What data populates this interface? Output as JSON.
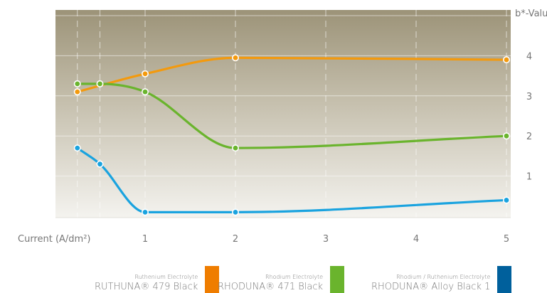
{
  "chart_data": {
    "type": "line",
    "xlabel": "Current (A/dm²)",
    "ylabel": "b*-Value",
    "x_ticks": [
      "1",
      "2",
      "3",
      "4",
      "5"
    ],
    "y_ticks": [
      "1",
      "2",
      "3",
      "4"
    ],
    "xlim": [
      0.0,
      5.0
    ],
    "ylim": [
      0,
      5
    ],
    "grid": true,
    "legend_position": "bottom",
    "series": [
      {
        "name": "RUTHUNA® 479 Black",
        "category": "Ruthenium Electrolyte",
        "color": "#f39a0e",
        "x": [
          0.25,
          1,
          2,
          5
        ],
        "y": [
          3.1,
          3.55,
          3.95,
          3.9
        ]
      },
      {
        "name": "RHODUNA® 471 Black",
        "category": "Rhodium Electrolyte",
        "color": "#6ab42d",
        "x": [
          0.25,
          0.5,
          1,
          2,
          5
        ],
        "y": [
          3.3,
          3.3,
          3.1,
          1.7,
          2.0
        ]
      },
      {
        "name": "RHODUNA® Alloy Black 1",
        "category": "Rhodium / Ruthenium Electrolyte",
        "color": "#1aa3df",
        "x": [
          0.25,
          0.5,
          1,
          2,
          5
        ],
        "y": [
          1.7,
          1.3,
          0.1,
          0.1,
          0.4
        ]
      }
    ]
  },
  "legend": [
    {
      "category": "Ruthenium Electrolyte",
      "name": "RUTHUNA® 479 Black",
      "swatch_color": "#ef7d00"
    },
    {
      "category": "Rhodium Electrolyte",
      "name": "RHODUNA® 471 Black",
      "swatch_color": "#6ab42d"
    },
    {
      "category": "Rhodium / Ruthenium Electrolyte",
      "name": "RHODUNA® Alloy Black 1",
      "swatch_color": "#00609c"
    }
  ]
}
